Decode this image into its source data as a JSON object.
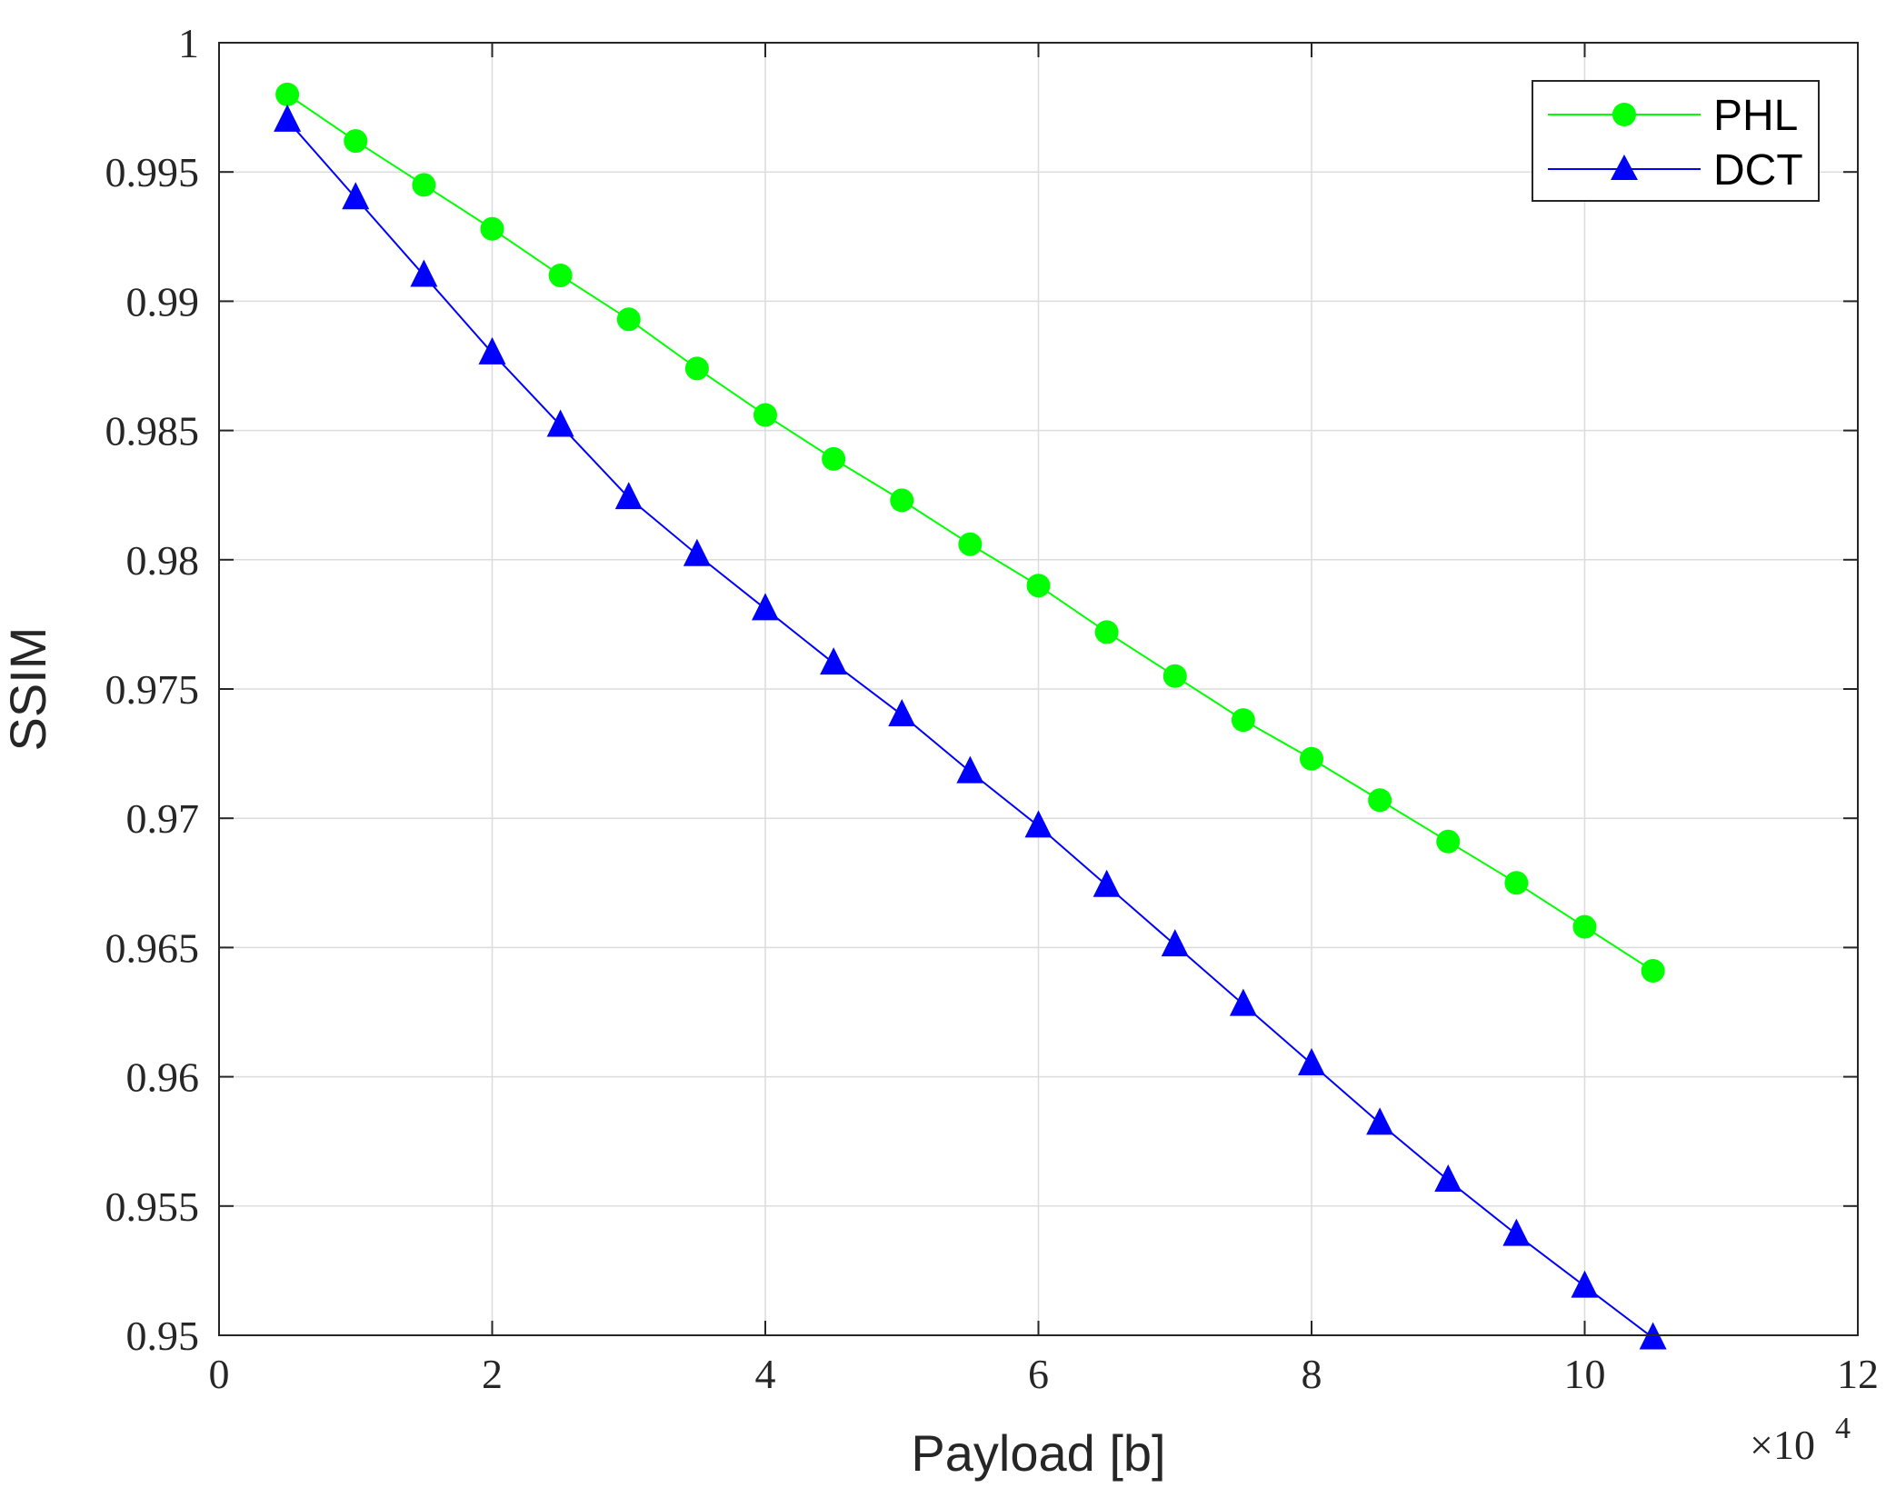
{
  "colors": {
    "phl": "#00ff00",
    "dct": "#0000ff",
    "grid": "#dcdcdc",
    "axis": "#262626"
  },
  "chart_data": {
    "type": "line",
    "title": "",
    "xlabel": "Payload [b]",
    "ylabel": "SSIM",
    "x_multiplier_label": "×10",
    "x_multiplier_exponent": "4",
    "xlim": [
      0,
      12
    ],
    "ylim": [
      0.95,
      1.0
    ],
    "x_scale_factor": 10000,
    "grid": true,
    "legend_position": "top-right",
    "x_ticks": [
      0,
      2,
      4,
      6,
      8,
      10,
      12
    ],
    "x_tick_labels": [
      "0",
      "2",
      "4",
      "6",
      "8",
      "10",
      "12"
    ],
    "y_ticks": [
      0.95,
      0.955,
      0.96,
      0.965,
      0.97,
      0.975,
      0.98,
      0.985,
      0.99,
      0.995,
      1.0
    ],
    "y_tick_labels": [
      "0.95",
      "0.955",
      "0.96",
      "0.965",
      "0.97",
      "0.975",
      "0.98",
      "0.985",
      "0.99",
      "0.995",
      "1"
    ],
    "x": [
      0.5,
      1.0,
      1.5,
      2.0,
      2.5,
      3.0,
      3.5,
      4.0,
      4.5,
      5.0,
      5.5,
      6.0,
      6.5,
      7.0,
      7.5,
      8.0,
      8.5,
      9.0,
      9.5,
      10.0,
      10.5
    ],
    "series": [
      {
        "name": "PHL",
        "color": "#00ff00",
        "marker": "circle",
        "values": [
          0.998,
          0.9962,
          0.9945,
          0.9928,
          0.991,
          0.9893,
          0.9874,
          0.9856,
          0.9839,
          0.9823,
          0.9806,
          0.979,
          0.9772,
          0.9755,
          0.9738,
          0.9723,
          0.9707,
          0.9691,
          0.9675,
          0.9658,
          0.9641
        ]
      },
      {
        "name": "DCT",
        "color": "#0000ff",
        "marker": "triangle",
        "values": [
          0.997,
          0.994,
          0.991,
          0.988,
          0.9852,
          0.9824,
          0.9802,
          0.9781,
          0.976,
          0.974,
          0.9718,
          0.9697,
          0.9674,
          0.9651,
          0.9628,
          0.9605,
          0.9582,
          0.956,
          0.9539,
          0.9519,
          0.9499
        ]
      }
    ]
  }
}
